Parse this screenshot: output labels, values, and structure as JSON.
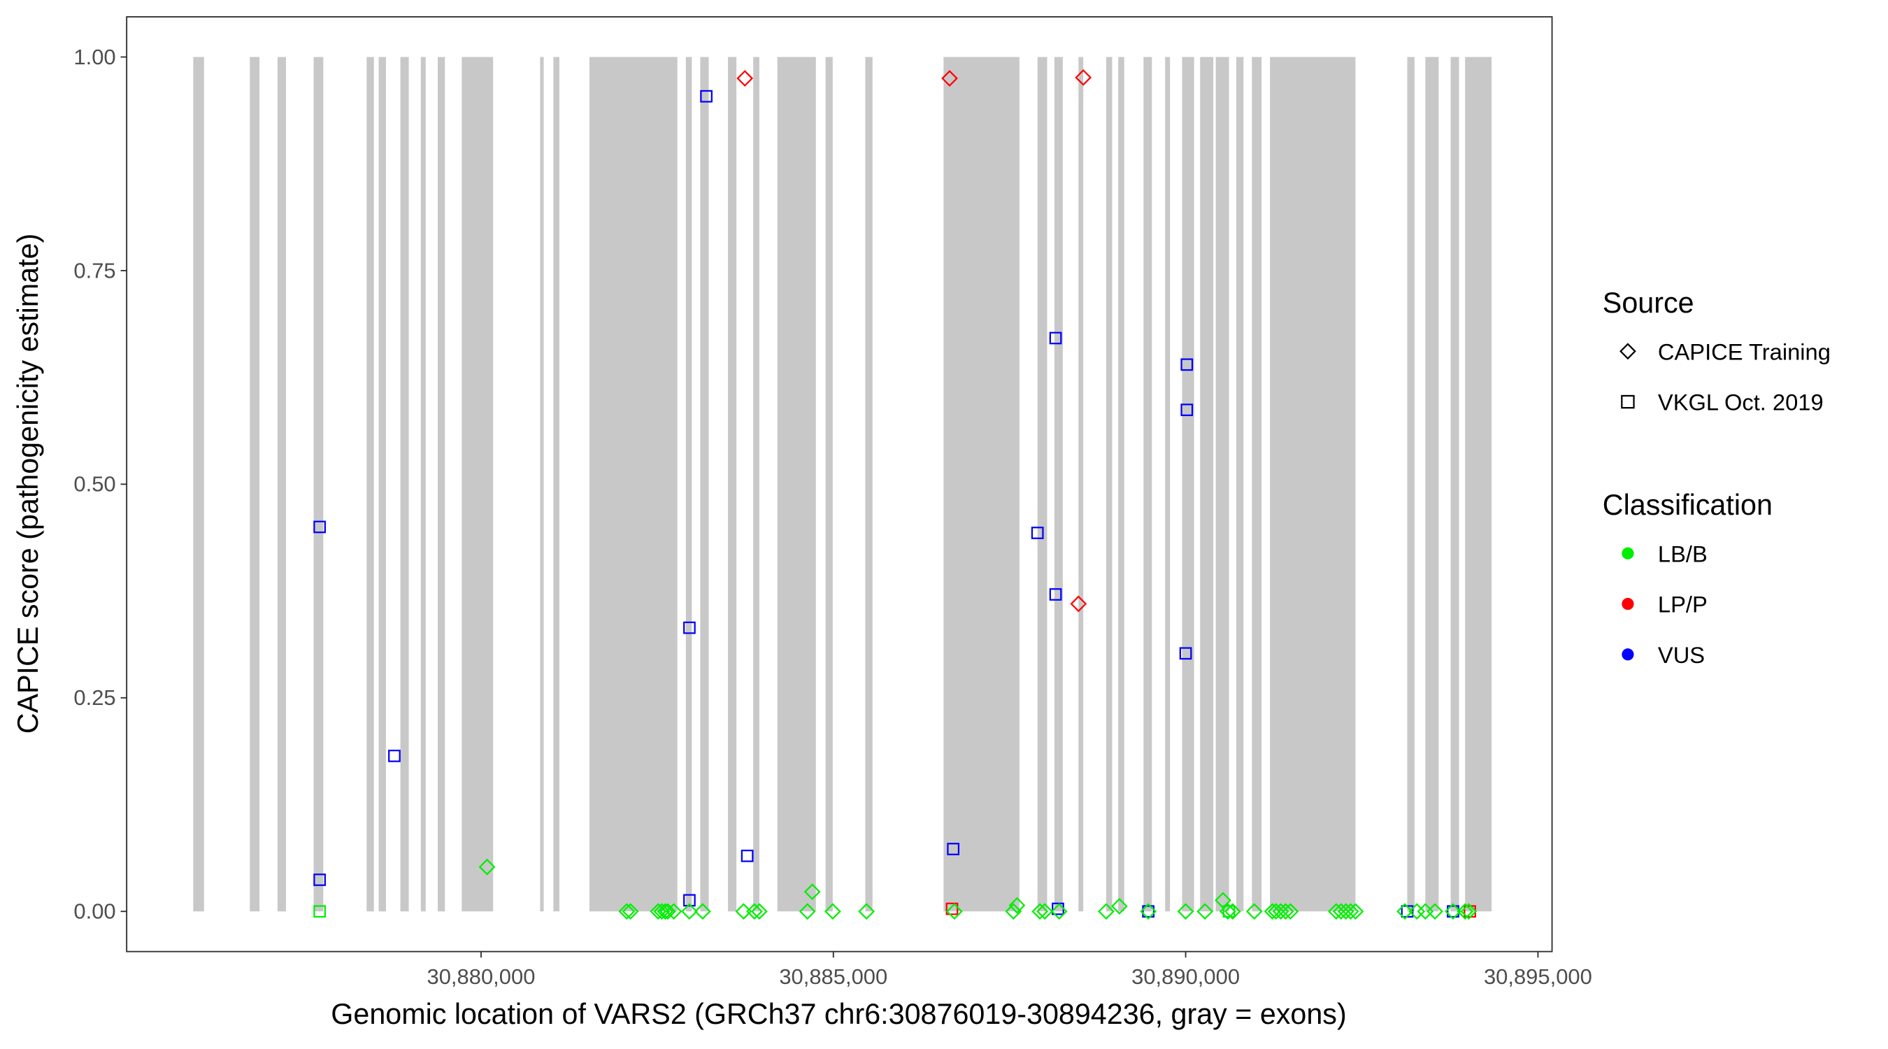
{
  "chart_data": {
    "type": "scatter",
    "xlabel": "Genomic location of VARS2 (GRCh37 chr6:30876019-30894236, gray = exons)",
    "ylabel": "CAPICE score (pathogenicity estimate)",
    "xlim": [
      30874970,
      30895200
    ],
    "ylim": [
      -0.047,
      1.047
    ],
    "xticks": [
      30880000,
      30885000,
      30890000,
      30895000
    ],
    "xtick_labels": [
      "30,880,000",
      "30,885,000",
      "30,890,000",
      "30,895,000"
    ],
    "yticks": [
      0,
      0.25,
      0.5,
      0.75,
      1.0
    ],
    "ytick_labels": [
      "0.00",
      "0.25",
      "0.50",
      "0.75",
      "1.00"
    ],
    "grid": false,
    "exon_color": "#c8c8c8",
    "exons": [
      [
        30875915,
        30876068
      ],
      [
        30876718,
        30876855
      ],
      [
        30877111,
        30877231
      ],
      [
        30877624,
        30877761
      ],
      [
        30878376,
        30878479
      ],
      [
        30878547,
        30878650
      ],
      [
        30878855,
        30878974
      ],
      [
        30879145,
        30879214
      ],
      [
        30879385,
        30879487
      ],
      [
        30879726,
        30880171
      ],
      [
        30880838,
        30880889
      ],
      [
        30881026,
        30881111
      ],
      [
        30881538,
        30882786
      ],
      [
        30882906,
        30882991
      ],
      [
        30883111,
        30883231
      ],
      [
        30883504,
        30883624
      ],
      [
        30883863,
        30883949
      ],
      [
        30884205,
        30884752
      ],
      [
        30884889,
        30884991
      ],
      [
        30885453,
        30885556
      ],
      [
        30886564,
        30887641
      ],
      [
        30887897,
        30888034
      ],
      [
        30888137,
        30888256
      ],
      [
        30888479,
        30888547
      ],
      [
        30888872,
        30888957
      ],
      [
        30889043,
        30889128
      ],
      [
        30889402,
        30889521
      ],
      [
        30889709,
        30889778
      ],
      [
        30889949,
        30890120
      ],
      [
        30890205,
        30890393
      ],
      [
        30890427,
        30890615
      ],
      [
        30890718,
        30890821
      ],
      [
        30890940,
        30891077
      ],
      [
        30891197,
        30892410
      ],
      [
        30893145,
        30893248
      ],
      [
        30893402,
        30893590
      ],
      [
        30893761,
        30893880
      ],
      [
        30893966,
        30894342
      ]
    ],
    "legend": {
      "position": "right",
      "source_title": "Source",
      "source_items": [
        {
          "label": "CAPICE Training",
          "shape": "diamond"
        },
        {
          "label": "VKGL Oct. 2019",
          "shape": "square"
        }
      ],
      "class_title": "Classification",
      "class_items": [
        {
          "label": "LB/B",
          "color": "#00ee00"
        },
        {
          "label": "LP/P",
          "color": "#ff0000"
        },
        {
          "label": "VUS",
          "color": "#0000ff"
        }
      ]
    },
    "series": [
      {
        "name": "VKGL Oct. 2019 - VUS",
        "shape": "square",
        "color": "#0000ff",
        "points": [
          [
            30877709,
            0.45
          ],
          [
            30877709,
            0.037
          ],
          [
            30878769,
            0.182
          ],
          [
            30882957,
            0.332
          ],
          [
            30882957,
            0.013
          ],
          [
            30883197,
            0.954
          ],
          [
            30883778,
            0.065
          ],
          [
            30886701,
            0.073
          ],
          [
            30887897,
            0.443
          ],
          [
            30888154,
            0.671
          ],
          [
            30888154,
            0.371
          ],
          [
            30888188,
            0.003
          ],
          [
            30889470,
            0.0
          ],
          [
            30890017,
            0.64
          ],
          [
            30890017,
            0.587
          ],
          [
            30890000,
            0.302
          ],
          [
            30893145,
            0.0
          ],
          [
            30893795,
            0.0
          ]
        ]
      },
      {
        "name": "VKGL Oct. 2019 - LB/B",
        "shape": "square",
        "color": "#00ee00",
        "points": [
          [
            30877709,
            0.0
          ],
          [
            30890615,
            0.0
          ]
        ]
      },
      {
        "name": "VKGL Oct. 2019 - LP/P",
        "shape": "square",
        "color": "#ff0000",
        "points": [
          [
            30886684,
            0.003
          ],
          [
            30894034,
            0.0
          ]
        ]
      },
      {
        "name": "CAPICE Training - LP/P",
        "shape": "diamond",
        "color": "#ff0000",
        "points": [
          [
            30883744,
            0.975
          ],
          [
            30886650,
            0.975
          ],
          [
            30888547,
            0.976
          ],
          [
            30888479,
            0.36
          ]
        ]
      },
      {
        "name": "CAPICE Training - LB/B",
        "shape": "diamond",
        "color": "#00ee00",
        "points": [
          [
            30880085,
            0.052
          ],
          [
            30884701,
            0.023
          ],
          [
            30887607,
            0.007
          ],
          [
            30889060,
            0.006
          ],
          [
            30890530,
            0.013
          ],
          [
            30882068,
            0
          ],
          [
            30882120,
            0
          ],
          [
            30882513,
            0
          ],
          [
            30882564,
            0
          ],
          [
            30882615,
            0
          ],
          [
            30882650,
            0
          ],
          [
            30882735,
            0
          ],
          [
            30882957,
            0
          ],
          [
            30883145,
            0
          ],
          [
            30883726,
            0
          ],
          [
            30883880,
            0
          ],
          [
            30883949,
            0
          ],
          [
            30884632,
            0
          ],
          [
            30884991,
            0
          ],
          [
            30885470,
            0
          ],
          [
            30886718,
            0
          ],
          [
            30887556,
            0
          ],
          [
            30887932,
            0
          ],
          [
            30888000,
            0
          ],
          [
            30888205,
            0
          ],
          [
            30888872,
            0
          ],
          [
            30889470,
            0
          ],
          [
            30890000,
            0
          ],
          [
            30890274,
            0
          ],
          [
            30890598,
            0
          ],
          [
            30890667,
            0
          ],
          [
            30890974,
            0
          ],
          [
            30891231,
            0
          ],
          [
            30891282,
            0
          ],
          [
            30891350,
            0
          ],
          [
            30891419,
            0
          ],
          [
            30891487,
            0
          ],
          [
            30892137,
            0
          ],
          [
            30892205,
            0
          ],
          [
            30892274,
            0
          ],
          [
            30892342,
            0
          ],
          [
            30892410,
            0
          ],
          [
            30893111,
            0
          ],
          [
            30893282,
            0
          ],
          [
            30893402,
            0
          ],
          [
            30893538,
            0
          ],
          [
            30893795,
            0
          ],
          [
            30893966,
            0
          ],
          [
            30894017,
            0
          ]
        ]
      }
    ]
  }
}
